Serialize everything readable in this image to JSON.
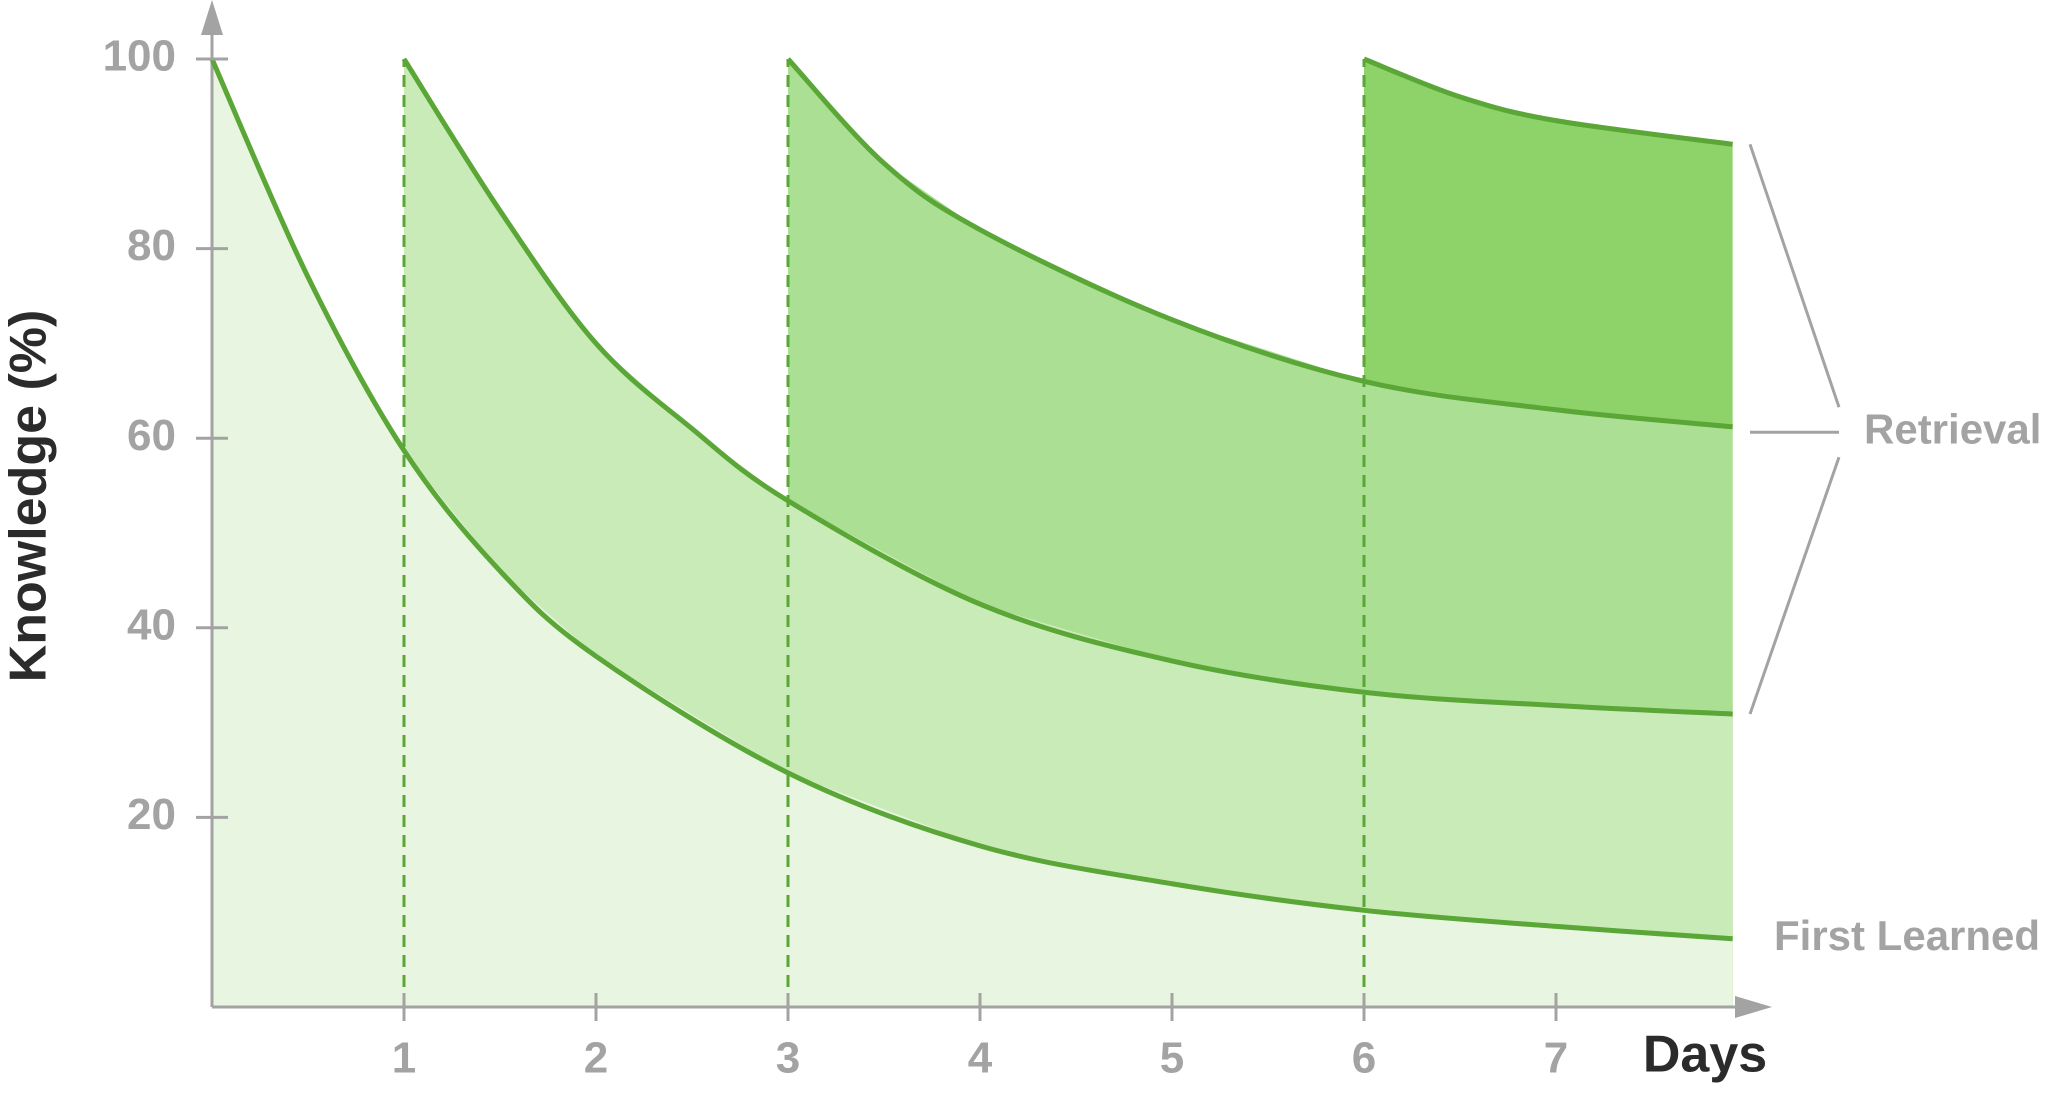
{
  "chart_data": {
    "type": "area",
    "x_label": "Days",
    "y_label": "Knowledge (%)",
    "xlim": [
      0,
      8
    ],
    "ylim": [
      0,
      100
    ],
    "xticks": [
      1,
      2,
      3,
      4,
      5,
      6,
      7
    ],
    "yticks": [
      20,
      40,
      60,
      80,
      100
    ],
    "line_color": "#5aa636",
    "annotation": "Retrieval",
    "series": [
      {
        "name": "First Learned",
        "color": "#e8f5e0",
        "x": [
          0,
          0.5,
          1,
          1.5,
          2,
          3,
          4,
          5,
          6,
          7,
          7.92
        ],
        "values": [
          100,
          77,
          58.7,
          46,
          37,
          24.7,
          17,
          13,
          10.2,
          8.5,
          7.2
        ]
      },
      {
        "color": "#c9ebb8",
        "x": [
          1,
          1.5,
          2,
          2.5,
          3,
          4,
          5,
          6,
          7,
          7.92
        ],
        "values": [
          100,
          84,
          70,
          61,
          53.4,
          42.5,
          36.5,
          33.2,
          31.8,
          30.9
        ]
      },
      {
        "color": "#abdf93",
        "x": [
          3,
          3.5,
          4,
          5,
          6,
          7,
          7.92
        ],
        "values": [
          100,
          89,
          82,
          72.5,
          66,
          63,
          61.2
        ]
      },
      {
        "color": "#8dd36a",
        "x": [
          6,
          6.5,
          7,
          7.92
        ],
        "values": [
          100,
          96,
          93.5,
          91
        ]
      }
    ]
  }
}
